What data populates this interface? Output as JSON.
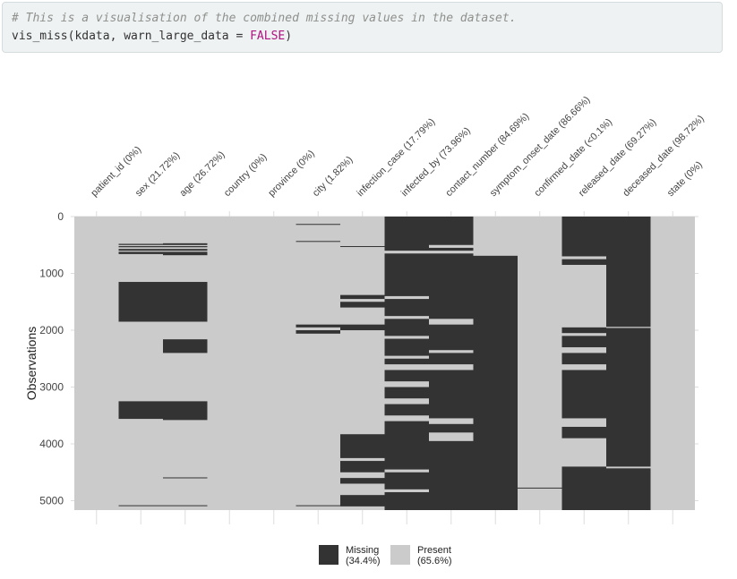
{
  "code": {
    "comment": "# This is a visualisation of the combined missing values in the dataset.",
    "call_prefix": "vis_miss(kdata, warn_large_data = ",
    "call_bool": "FALSE",
    "call_suffix": ")"
  },
  "colors": {
    "missing": "#333333",
    "present": "#cbcbcb",
    "grid": "#dddddd",
    "text": "#222222",
    "code_bg": "#eef2f3"
  },
  "chart_data": {
    "type": "heatmap",
    "title": "",
    "ylabel": "Observations",
    "xlabel": "",
    "ylim": [
      0,
      5165
    ],
    "yticks": [
      0,
      1000,
      2000,
      3000,
      4000,
      5000
    ],
    "x_axis_position": "top",
    "grid": true,
    "legend_position": "bottom",
    "columns": [
      {
        "name": "patient_id",
        "label": "patient_id (0%)",
        "missing_ranges": []
      },
      {
        "name": "sex",
        "label": "sex (21.72%)",
        "missing_ranges": [
          [
            480,
            500
          ],
          [
            520,
            540
          ],
          [
            570,
            600
          ],
          [
            620,
            660
          ],
          [
            1150,
            1850
          ],
          [
            3250,
            3560
          ],
          [
            5080,
            5095
          ]
        ]
      },
      {
        "name": "age",
        "label": "age (26.72%)",
        "missing_ranges": [
          [
            470,
            500
          ],
          [
            520,
            540
          ],
          [
            570,
            600
          ],
          [
            620,
            680
          ],
          [
            1150,
            1850
          ],
          [
            2160,
            2400
          ],
          [
            3250,
            3580
          ],
          [
            4590,
            4600
          ],
          [
            5080,
            5095
          ]
        ]
      },
      {
        "name": "country",
        "label": "country (0%)",
        "missing_ranges": []
      },
      {
        "name": "province",
        "label": "province (0%)",
        "missing_ranges": []
      },
      {
        "name": "city",
        "label": "city (1.82%)",
        "missing_ranges": [
          [
            130,
            140
          ],
          [
            430,
            440
          ],
          [
            1900,
            1950
          ],
          [
            2000,
            2060
          ],
          [
            5080,
            5090
          ]
        ]
      },
      {
        "name": "infection_case",
        "label": "infection_case (17.79%)",
        "missing_ranges": [
          [
            520,
            530
          ],
          [
            1380,
            1450
          ],
          [
            1500,
            1600
          ],
          [
            1900,
            2000
          ],
          [
            3830,
            4250
          ],
          [
            4300,
            4500
          ],
          [
            4600,
            4700
          ],
          [
            4900,
            5100
          ]
        ]
      },
      {
        "name": "infected_by",
        "label": "infected_by (73.96%)",
        "missing_ranges": [
          [
            0,
            600
          ],
          [
            650,
            1400
          ],
          [
            1450,
            1750
          ],
          [
            1800,
            2100
          ],
          [
            2150,
            2450
          ],
          [
            2500,
            2600
          ],
          [
            2700,
            2900
          ],
          [
            3000,
            3200
          ],
          [
            3300,
            3500
          ],
          [
            3600,
            4450
          ],
          [
            4500,
            4800
          ],
          [
            4850,
            5165
          ]
        ]
      },
      {
        "name": "contact_number",
        "label": "contact_number (84.69%)",
        "missing_ranges": [
          [
            0,
            500
          ],
          [
            550,
            600
          ],
          [
            650,
            1800
          ],
          [
            1900,
            2350
          ],
          [
            2400,
            2600
          ],
          [
            2700,
            3550
          ],
          [
            3650,
            3800
          ],
          [
            3950,
            5165
          ]
        ]
      },
      {
        "name": "symptom_onset_date",
        "label": "symptom_onset_date (86.66%)",
        "missing_ranges": [
          [
            690,
            5165
          ]
        ]
      },
      {
        "name": "confirmed_date",
        "label": "confirmed_date (<0.1%)",
        "missing_ranges": [
          [
            4770,
            4782
          ]
        ]
      },
      {
        "name": "released_date",
        "label": "released_date (69.27%)",
        "missing_ranges": [
          [
            0,
            700
          ],
          [
            750,
            850
          ],
          [
            1950,
            2050
          ],
          [
            2100,
            2300
          ],
          [
            2400,
            2600
          ],
          [
            2700,
            3550
          ],
          [
            3700,
            3900
          ],
          [
            4400,
            5165
          ]
        ]
      },
      {
        "name": "deceased_date",
        "label": "deceased_date (98.72%)",
        "missing_ranges": [
          [
            0,
            1940
          ],
          [
            1960,
            4400
          ],
          [
            4430,
            5165
          ]
        ]
      },
      {
        "name": "state",
        "label": "state (0%)",
        "missing_ranges": []
      }
    ],
    "legend": [
      {
        "key": "missing",
        "label": "Missing",
        "pct": "(34.4%)"
      },
      {
        "key": "present",
        "label": "Present",
        "pct": "(65.6%)"
      }
    ]
  }
}
